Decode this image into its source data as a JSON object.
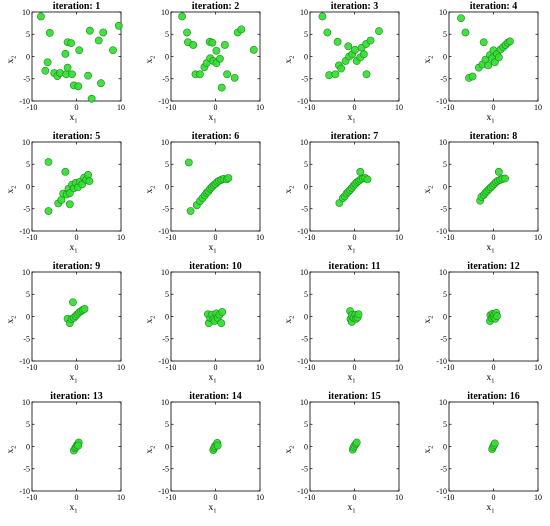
{
  "colors": {
    "marker_fill": "#33dd33",
    "marker_edge": "#1a8a1a",
    "axis": "#000000"
  },
  "chart_data": [
    {
      "type": "scatter",
      "title": "iteration: 1",
      "xlabel": "x",
      "xlabel_sub": "1",
      "ylabel": "x",
      "ylabel_sub": "2",
      "xlim": [
        -10,
        10
      ],
      "ylim": [
        -10,
        10
      ],
      "xticks": [
        -10,
        0,
        10
      ],
      "yticks": [
        -10,
        -5,
        0,
        5,
        10
      ],
      "points": [
        [
          -8,
          9
        ],
        [
          -6,
          5.3
        ],
        [
          -6.5,
          -1.3
        ],
        [
          -7,
          -3.2
        ],
        [
          -5,
          -3.7
        ],
        [
          -4.3,
          -4.4
        ],
        [
          -3.7,
          -3.7
        ],
        [
          -2.5,
          0.6
        ],
        [
          -2,
          3.2
        ],
        [
          -1.2,
          3
        ],
        [
          -2.3,
          -4
        ],
        [
          -2,
          -2.5
        ],
        [
          -1,
          -4
        ],
        [
          -0.6,
          -6.5
        ],
        [
          0.4,
          -6.7
        ],
        [
          0.6,
          1.4
        ],
        [
          2.6,
          -4.3
        ],
        [
          3,
          5.8
        ],
        [
          3.4,
          -9.5
        ],
        [
          5,
          3.6
        ],
        [
          5.5,
          -6
        ],
        [
          6,
          5.4
        ],
        [
          8.2,
          1.4
        ],
        [
          9.5,
          6.9
        ]
      ]
    },
    {
      "type": "scatter",
      "title": "iteration: 2",
      "xlabel": "x",
      "xlabel_sub": "1",
      "ylabel": "x",
      "ylabel_sub": "2",
      "xlim": [
        -10,
        10
      ],
      "ylim": [
        -10,
        10
      ],
      "xticks": [
        -10,
        0,
        10
      ],
      "yticks": [
        -10,
        -5,
        0,
        5,
        10
      ],
      "points": [
        [
          -7.5,
          9
        ],
        [
          -6.4,
          5.4
        ],
        [
          -6.2,
          3.2
        ],
        [
          -5,
          2.6
        ],
        [
          -4.5,
          -4
        ],
        [
          -3.5,
          -4
        ],
        [
          -2.5,
          -2.4
        ],
        [
          -2,
          -1.5
        ],
        [
          -1.3,
          3.3
        ],
        [
          -1.2,
          -0.4
        ],
        [
          -0.7,
          3.1
        ],
        [
          -0.5,
          -1
        ],
        [
          0.2,
          1.3
        ],
        [
          0.2,
          -1.5
        ],
        [
          1,
          -0.5
        ],
        [
          1.4,
          -7
        ],
        [
          2.1,
          2.6
        ],
        [
          2.6,
          -4
        ],
        [
          4.3,
          -4.8
        ],
        [
          5,
          5.4
        ],
        [
          5.8,
          6.1
        ],
        [
          8.6,
          1.5
        ]
      ]
    },
    {
      "type": "scatter",
      "title": "iteration: 3",
      "xlabel": "x",
      "xlabel_sub": "1",
      "ylabel": "x",
      "ylabel_sub": "2",
      "xlim": [
        -10,
        10
      ],
      "ylim": [
        -10,
        10
      ],
      "xticks": [
        -10,
        0,
        10
      ],
      "yticks": [
        -10,
        -5,
        0,
        5,
        10
      ],
      "points": [
        [
          -7.2,
          9
        ],
        [
          -6.1,
          5.4
        ],
        [
          -5.7,
          -4.2
        ],
        [
          -4.3,
          -4
        ],
        [
          -3.8,
          3.3
        ],
        [
          -3.5,
          -2
        ],
        [
          -3,
          -2.7
        ],
        [
          -2,
          -1
        ],
        [
          -1.4,
          2.3
        ],
        [
          -1.2,
          0
        ],
        [
          -0.5,
          0.5
        ],
        [
          0.1,
          1.5
        ],
        [
          0.5,
          -1
        ],
        [
          1.3,
          -0.2
        ],
        [
          1.6,
          2
        ],
        [
          2.1,
          0.5
        ],
        [
          2.6,
          2.8
        ],
        [
          2.7,
          -4
        ],
        [
          3.6,
          3.6
        ],
        [
          5.5,
          5.7
        ]
      ]
    },
    {
      "type": "scatter",
      "title": "iteration: 4",
      "xlabel": "x",
      "xlabel_sub": "1",
      "ylabel": "x",
      "ylabel_sub": "2",
      "xlim": [
        -10,
        10
      ],
      "ylim": [
        -10,
        10
      ],
      "xticks": [
        -10,
        0,
        10
      ],
      "yticks": [
        -10,
        -5,
        0,
        5,
        10
      ],
      "points": [
        [
          -7.3,
          8.6
        ],
        [
          -6.3,
          5.4
        ],
        [
          -5.5,
          -4.8
        ],
        [
          -4.7,
          -4.5
        ],
        [
          -3.3,
          -2.5
        ],
        [
          -2.5,
          -1.8
        ],
        [
          -2.2,
          3.2
        ],
        [
          -1.8,
          -0.7
        ],
        [
          -1.2,
          -2
        ],
        [
          -0.8,
          0.3
        ],
        [
          -0.3,
          -0.4
        ],
        [
          0,
          1.4
        ],
        [
          0.3,
          -1.3
        ],
        [
          0.8,
          0.6
        ],
        [
          1.2,
          -0.2
        ],
        [
          1.6,
          1.6
        ],
        [
          2.2,
          2.1
        ],
        [
          2.7,
          2.6
        ],
        [
          3.2,
          3.1
        ],
        [
          3.7,
          3.4
        ]
      ]
    },
    {
      "type": "scatter",
      "title": "iteration: 5",
      "xlabel": "x",
      "xlabel_sub": "1",
      "ylabel": "x",
      "ylabel_sub": "2",
      "xlim": [
        -10,
        10
      ],
      "ylim": [
        -10,
        10
      ],
      "xticks": [
        -10,
        0,
        10
      ],
      "yticks": [
        -10,
        -5,
        0,
        5,
        10
      ],
      "points": [
        [
          -6.3,
          5.5
        ],
        [
          -6.3,
          -5.5
        ],
        [
          -4.1,
          -3.8
        ],
        [
          -3.4,
          -3
        ],
        [
          -3,
          -1.6
        ],
        [
          -2.5,
          3.3
        ],
        [
          -2.2,
          -1.8
        ],
        [
          -1.8,
          -0.5
        ],
        [
          -1.5,
          -1.5
        ],
        [
          -1,
          0.4
        ],
        [
          -1.5,
          -4
        ],
        [
          -0.6,
          -0.4
        ],
        [
          -0.2,
          0.8
        ],
        [
          0.3,
          -0.2
        ],
        [
          0.8,
          1.1
        ],
        [
          1.3,
          0.5
        ],
        [
          1.7,
          2
        ],
        [
          2.2,
          1.5
        ],
        [
          2.6,
          2.6
        ],
        [
          2.9,
          1.2
        ]
      ]
    },
    {
      "type": "scatter",
      "title": "iteration: 6",
      "xlabel": "x",
      "xlabel_sub": "1",
      "ylabel": "x",
      "ylabel_sub": "2",
      "xlim": [
        -10,
        10
      ],
      "ylim": [
        -10,
        10
      ],
      "xticks": [
        -10,
        0,
        10
      ],
      "yticks": [
        -10,
        -5,
        0,
        5,
        10
      ],
      "points": [
        [
          -6,
          5.4
        ],
        [
          -5.6,
          -5.5
        ],
        [
          -4.2,
          -4.2
        ],
        [
          -3.5,
          -3.3
        ],
        [
          -2.9,
          -2.6
        ],
        [
          -2.4,
          -2
        ],
        [
          -2,
          -1.4
        ],
        [
          -1.6,
          -1.1
        ],
        [
          -1.2,
          -0.5
        ],
        [
          -0.8,
          -0.1
        ],
        [
          -0.4,
          0.3
        ],
        [
          0,
          0.6
        ],
        [
          0.4,
          1
        ],
        [
          0.8,
          1.3
        ],
        [
          1.3,
          1.5
        ],
        [
          1.8,
          1.7
        ],
        [
          2.5,
          1.6
        ],
        [
          2.9,
          1.9
        ]
      ]
    },
    {
      "type": "scatter",
      "title": "iteration: 7",
      "xlabel": "x",
      "xlabel_sub": "1",
      "ylabel": "x",
      "ylabel_sub": "2",
      "xlim": [
        -10,
        10
      ],
      "ylim": [
        -10,
        10
      ],
      "xticks": [
        -10,
        0,
        10
      ],
      "yticks": [
        -10,
        -5,
        0,
        5,
        10
      ],
      "points": [
        [
          -3.4,
          -3.7
        ],
        [
          -2.6,
          -2.6
        ],
        [
          -2.2,
          -2.2
        ],
        [
          -1.8,
          -1.6
        ],
        [
          -1.4,
          -1.2
        ],
        [
          -1,
          -0.8
        ],
        [
          -0.6,
          -0.3
        ],
        [
          -0.2,
          0.2
        ],
        [
          0.2,
          0.6
        ],
        [
          0.6,
          1
        ],
        [
          1,
          1.3
        ],
        [
          1.3,
          3.3
        ],
        [
          1.4,
          1.6
        ],
        [
          1.9,
          1.8
        ],
        [
          2.4,
          1.9
        ],
        [
          2.9,
          1.6
        ]
      ]
    },
    {
      "type": "scatter",
      "title": "iteration: 8",
      "xlabel": "x",
      "xlabel_sub": "1",
      "ylabel": "x",
      "ylabel_sub": "2",
      "xlim": [
        -10,
        10
      ],
      "ylim": [
        -10,
        10
      ],
      "xticks": [
        -10,
        0,
        10
      ],
      "yticks": [
        -10,
        -5,
        0,
        5,
        10
      ],
      "points": [
        [
          -3,
          -3.2
        ],
        [
          -2.7,
          -2.3
        ],
        [
          -2.2,
          -1.9
        ],
        [
          -1.8,
          -1.4
        ],
        [
          -1.4,
          -1
        ],
        [
          -1,
          -0.6
        ],
        [
          -0.6,
          -0.2
        ],
        [
          -0.2,
          0.2
        ],
        [
          0.2,
          0.6
        ],
        [
          0.6,
          1
        ],
        [
          1,
          1.3
        ],
        [
          1.2,
          3.3
        ],
        [
          1.5,
          1.5
        ],
        [
          2,
          1.7
        ],
        [
          2.6,
          1.8
        ]
      ]
    },
    {
      "type": "scatter",
      "title": "iteration: 9",
      "xlabel": "x",
      "xlabel_sub": "1",
      "ylabel": "x",
      "ylabel_sub": "2",
      "xlim": [
        -10,
        10
      ],
      "ylim": [
        -10,
        10
      ],
      "xticks": [
        -10,
        0,
        10
      ],
      "yticks": [
        -10,
        -5,
        0,
        5,
        10
      ],
      "points": [
        [
          -2,
          -0.5
        ],
        [
          -1.5,
          -1.5
        ],
        [
          -1.1,
          -0.6
        ],
        [
          -0.8,
          3.2
        ],
        [
          -0.6,
          -0.3
        ],
        [
          -0.2,
          0.1
        ],
        [
          0.2,
          0.5
        ],
        [
          0.6,
          0.9
        ],
        [
          1,
          1.2
        ],
        [
          1.4,
          1.5
        ],
        [
          1.8,
          1.7
        ]
      ]
    },
    {
      "type": "scatter",
      "title": "iteration: 10",
      "xlabel": "x",
      "xlabel_sub": "1",
      "ylabel": "x",
      "ylabel_sub": "2",
      "xlim": [
        -10,
        10
      ],
      "ylim": [
        -10,
        10
      ],
      "xticks": [
        -10,
        0,
        10
      ],
      "yticks": [
        -10,
        -5,
        0,
        5,
        10
      ],
      "points": [
        [
          -1.7,
          0.5
        ],
        [
          -1.5,
          -1.5
        ],
        [
          -1.2,
          -0.3
        ],
        [
          -0.8,
          0.4
        ],
        [
          -0.5,
          -0.6
        ],
        [
          -0.2,
          -1
        ],
        [
          0.2,
          0.7
        ],
        [
          0.5,
          -0.3
        ],
        [
          0.9,
          0.4
        ],
        [
          1.3,
          -1.5
        ],
        [
          1.5,
          1
        ]
      ]
    },
    {
      "type": "scatter",
      "title": "iteration: 11",
      "xlabel": "x",
      "xlabel_sub": "1",
      "ylabel": "x",
      "ylabel_sub": "2",
      "xlim": [
        -10,
        10
      ],
      "ylim": [
        -10,
        10
      ],
      "xticks": [
        -10,
        0,
        10
      ],
      "yticks": [
        -10,
        -5,
        0,
        5,
        10
      ],
      "points": [
        [
          -1,
          1.2
        ],
        [
          -0.9,
          -0.6
        ],
        [
          -0.6,
          -1.2
        ],
        [
          -0.6,
          0.3
        ],
        [
          -0.2,
          -0.3
        ],
        [
          0.2,
          0.4
        ],
        [
          0.4,
          -0.5
        ],
        [
          0.7,
          -0.2
        ],
        [
          0.9,
          0.5
        ]
      ]
    },
    {
      "type": "scatter",
      "title": "iteration: 12",
      "xlabel": "x",
      "xlabel_sub": "1",
      "ylabel": "x",
      "ylabel_sub": "2",
      "xlim": [
        -10,
        10
      ],
      "ylim": [
        -10,
        10
      ],
      "xticks": [
        -10,
        0,
        10
      ],
      "yticks": [
        -10,
        -5,
        0,
        5,
        10
      ],
      "points": [
        [
          -0.8,
          -1
        ],
        [
          -0.7,
          0.3
        ],
        [
          -0.4,
          -0.4
        ],
        [
          -0.2,
          0.6
        ],
        [
          0,
          -0.1
        ],
        [
          0.2,
          0.4
        ],
        [
          0.4,
          -0.5
        ],
        [
          0.6,
          0.8
        ],
        [
          0.8,
          0.1
        ]
      ]
    },
    {
      "type": "scatter",
      "title": "iteration: 13",
      "xlabel": "x",
      "xlabel_sub": "1",
      "ylabel": "x",
      "ylabel_sub": "2",
      "xlim": [
        -10,
        10
      ],
      "ylim": [
        -10,
        10
      ],
      "xticks": [
        -10,
        0,
        10
      ],
      "yticks": [
        -10,
        -5,
        0,
        5,
        10
      ],
      "points": [
        [
          -0.6,
          -0.9
        ],
        [
          -0.3,
          -0.4
        ],
        [
          -0.1,
          -0.1
        ],
        [
          0.1,
          0.3
        ],
        [
          0.3,
          0.6
        ],
        [
          0.5,
          0.9
        ],
        [
          0.4,
          0.2
        ]
      ]
    },
    {
      "type": "scatter",
      "title": "iteration: 14",
      "xlabel": "x",
      "xlabel_sub": "1",
      "ylabel": "x",
      "ylabel_sub": "2",
      "xlim": [
        -10,
        10
      ],
      "ylim": [
        -10,
        10
      ],
      "xticks": [
        -10,
        0,
        10
      ],
      "yticks": [
        -10,
        -5,
        0,
        5,
        10
      ],
      "points": [
        [
          -0.5,
          -0.8
        ],
        [
          -0.3,
          -0.3
        ],
        [
          -0.1,
          0.1
        ],
        [
          0.2,
          0.4
        ],
        [
          0.4,
          0.8
        ],
        [
          0.5,
          0.2
        ]
      ]
    },
    {
      "type": "scatter",
      "title": "iteration: 15",
      "xlabel": "x",
      "xlabel_sub": "1",
      "ylabel": "x",
      "ylabel_sub": "2",
      "xlim": [
        -10,
        10
      ],
      "ylim": [
        -10,
        10
      ],
      "xticks": [
        -10,
        0,
        10
      ],
      "yticks": [
        -10,
        -5,
        0,
        5,
        10
      ],
      "points": [
        [
          -0.4,
          -0.7
        ],
        [
          -0.2,
          -0.2
        ],
        [
          0,
          0.2
        ],
        [
          0.3,
          0.6
        ],
        [
          0.5,
          0.9
        ]
      ]
    },
    {
      "type": "scatter",
      "title": "iteration: 16",
      "xlabel": "x",
      "xlabel_sub": "1",
      "ylabel": "x",
      "ylabel_sub": "2",
      "xlim": [
        -10,
        10
      ],
      "ylim": [
        -10,
        10
      ],
      "xticks": [
        -10,
        0,
        10
      ],
      "yticks": [
        -10,
        -5,
        0,
        5,
        10
      ],
      "points": [
        [
          -0.3,
          -0.6
        ],
        [
          -0.1,
          -0.1
        ],
        [
          0.1,
          0.3
        ],
        [
          0.3,
          0.7
        ]
      ]
    }
  ]
}
